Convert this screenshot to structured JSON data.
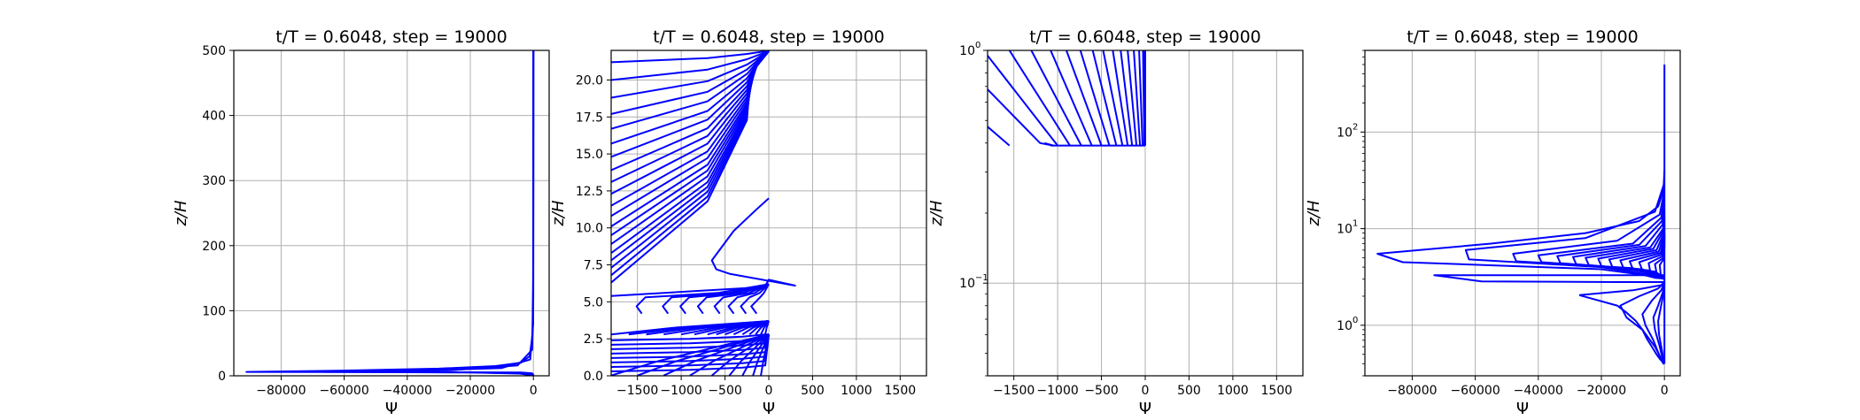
{
  "chart_data": [
    {
      "type": "line",
      "title": "t/T = 0.6048, step = 19000",
      "xlabel": "Ψ",
      "ylabel": "z/H",
      "xlim": [
        -95000,
        5000
      ],
      "ylim": [
        0,
        500
      ],
      "yscale": "linear",
      "grid": true,
      "color": "#0000ff",
      "xticks": [
        -80000,
        -60000,
        -40000,
        -20000,
        0
      ],
      "xtick_labels": [
        "−80000",
        "−60000",
        "−40000",
        "−20000",
        "0"
      ],
      "yticks": [
        0,
        100,
        200,
        300,
        400,
        500
      ],
      "ytick_labels": [
        "0",
        "100",
        "200",
        "300",
        "400",
        "500"
      ],
      "series": [
        {
          "x": [
            0,
            -20,
            -90,
            -300,
            -1200,
            -4000,
            -12000,
            -30000,
            -60000,
            -91000,
            -30000,
            -4000,
            -500,
            -50,
            0
          ],
          "y": [
            500,
            300,
            150,
            60,
            30,
            20,
            15,
            11,
            8,
            6,
            5.5,
            5,
            4,
            2,
            0.4
          ]
        },
        {
          "x": [
            0,
            -30,
            -400,
            -5000,
            -25000,
            -66000,
            -20000,
            -1000,
            0
          ],
          "y": [
            500,
            120,
            40,
            16,
            9,
            6,
            5,
            3,
            0.4
          ]
        },
        {
          "x": [
            0,
            -50,
            -1000,
            -10000,
            -40000,
            -5000,
            0
          ],
          "y": [
            500,
            80,
            25,
            12,
            7,
            4,
            0.4
          ]
        }
      ]
    },
    {
      "type": "line",
      "title": "t/T = 0.6048, step = 19000",
      "xlabel": "Ψ",
      "ylabel": "z/H",
      "xlim": [
        -1800,
        1800
      ],
      "ylim": [
        0,
        22
      ],
      "yscale": "linear",
      "grid": true,
      "color": "#0000ff",
      "xticks": [
        -1500,
        -1000,
        -500,
        0,
        500,
        1000,
        1500
      ],
      "xtick_labels": [
        "−1500",
        "−1000",
        "−500",
        "0",
        "500",
        "1000",
        "1500"
      ],
      "yticks": [
        0,
        2.5,
        5,
        7.5,
        10,
        12.5,
        15,
        17.5,
        20
      ],
      "ytick_labels": [
        "0.0",
        "2.5",
        "5.0",
        "7.5",
        "10.0",
        "12.5",
        "15.0",
        "17.5",
        "20.0"
      ],
      "upper_family": {
        "z0_values": [
          21.2,
          20.0,
          18.8,
          17.7,
          16.7,
          15.7,
          14.8,
          13.9,
          13.1,
          12.3,
          11.5,
          10.8,
          10.1,
          9.5,
          8.9,
          8.3,
          7.8,
          7.3,
          6.8,
          6.3
        ],
        "x_left": -1800,
        "z_surface": 22
      },
      "lower_family": {
        "z_values": [
          0.3,
          0.6,
          0.9,
          1.2,
          1.5,
          1.8,
          2.1,
          2.4
        ],
        "x_left": -1800,
        "z_top": 2.8
      },
      "dense_band": {
        "x_values": [
          -1800,
          -1600,
          -1400,
          -1200,
          -1000,
          -850,
          -700,
          -600,
          -500,
          -400,
          -300,
          -220,
          -150,
          -90,
          -40
        ],
        "z_range": [
          2.8,
          3.7
        ]
      },
      "bottom_ticks": {
        "x_values": [
          -1800,
          -1500,
          -1200,
          -900,
          -650,
          -450,
          -300,
          -180,
          -90
        ]
      },
      "spike": {
        "x": [
          -1800,
          -50,
          0,
          300,
          -450,
          -600,
          -650,
          -550,
          -400,
          -150,
          0
        ],
        "y": [
          5.4,
          6.0,
          6.5,
          6.1,
          6.9,
          7.2,
          7.8,
          8.6,
          9.8,
          11.2,
          12
        ]
      },
      "wiggle_family": {
        "x_values": [
          -1450,
          -1150,
          -950,
          -750,
          -560,
          -400,
          -260,
          -140
        ],
        "z_range": [
          4.2,
          5.3
        ]
      }
    },
    {
      "type": "line",
      "title": "t/T = 0.6048, step = 19000",
      "xlabel": "Ψ",
      "ylabel": "z/H",
      "xlim": [
        -1800,
        1800
      ],
      "ylim": [
        0.04,
        1
      ],
      "yscale": "log",
      "grid": true,
      "color": "#0000ff",
      "xticks": [
        -1500,
        -1000,
        -500,
        0,
        500,
        1000,
        1500
      ],
      "xtick_labels": [
        "−1500",
        "−1000",
        "−500",
        "0",
        "500",
        "1000",
        "1500"
      ],
      "ytick_labels": [
        "10",
        "−1",
        "10",
        "0"
      ],
      "yticks": [
        0.1,
        1
      ],
      "series": [
        {
          "x": [
            -1800,
            -1550
          ],
          "y": [
            0.47,
            0.39
          ]
        },
        {
          "x": [
            -1800,
            -1200,
            -1050,
            -1150
          ],
          "y": [
            0.68,
            0.4,
            0.39,
            0.4
          ]
        },
        {
          "x": [
            -1800,
            -1000
          ],
          "y": [
            0.95,
            0.39
          ]
        },
        {
          "x": [
            -1550,
            -860
          ],
          "y": [
            1,
            0.39
          ]
        },
        {
          "x": [
            -1300,
            -730
          ],
          "y": [
            1,
            0.39
          ]
        },
        {
          "x": [
            -1080,
            -610
          ],
          "y": [
            1,
            0.39
          ]
        },
        {
          "x": [
            -900,
            -500
          ],
          "y": [
            1,
            0.39
          ]
        },
        {
          "x": [
            -740,
            -410
          ],
          "y": [
            1,
            0.39
          ]
        },
        {
          "x": [
            -600,
            -330
          ],
          "y": [
            1,
            0.39
          ]
        },
        {
          "x": [
            -480,
            -260
          ],
          "y": [
            1,
            0.39
          ]
        },
        {
          "x": [
            -370,
            -200
          ],
          "y": [
            1,
            0.39
          ]
        },
        {
          "x": [
            -280,
            -150
          ],
          "y": [
            1,
            0.39
          ]
        },
        {
          "x": [
            -200,
            -100
          ],
          "y": [
            1,
            0.39
          ]
        },
        {
          "x": [
            -130,
            -60
          ],
          "y": [
            1,
            0.39
          ]
        },
        {
          "x": [
            -70,
            -30
          ],
          "y": [
            1,
            0.39
          ]
        },
        {
          "x": [
            -25,
            -10
          ],
          "y": [
            1,
            0.39
          ]
        },
        {
          "x": [
            0,
            0
          ],
          "y": [
            1,
            0.39
          ]
        },
        {
          "x": [
            -10,
            0
          ],
          "y": [
            1,
            0.39
          ]
        }
      ],
      "bottom_line": {
        "x": [
          -1080,
          0
        ],
        "y": [
          0.39,
          0.39
        ]
      }
    },
    {
      "type": "line",
      "title": "t/T = 0.6048, step = 19000",
      "xlabel": "Ψ",
      "ylabel": "z/H",
      "xlim": [
        -95000,
        5000
      ],
      "ylim": [
        0.3,
        700
      ],
      "yscale": "log",
      "grid": true,
      "color": "#0000ff",
      "xticks": [
        -80000,
        -60000,
        -40000,
        -20000,
        0
      ],
      "xtick_labels": [
        "−80000",
        "−60000",
        "−40000",
        "−20000",
        "0"
      ],
      "ytick_labels": [
        "10",
        "0",
        "10",
        "1",
        "10",
        "2"
      ],
      "yticks": [
        1,
        10,
        100
      ],
      "series": [
        {
          "x": [
            0,
            0
          ],
          "y": [
            500,
            0.4
          ]
        },
        {
          "x": [
            0,
            -300,
            -2000,
            -8000,
            -25000,
            -55000,
            -91000,
            -83000,
            -20000,
            -3000,
            0
          ],
          "y": [
            40,
            25,
            17,
            12,
            9,
            7,
            5.5,
            4.5,
            3.8,
            3.2,
            3
          ]
        },
        {
          "x": [
            0,
            -3000,
            -25000,
            -63000,
            -62000,
            -20000,
            -1000,
            0
          ],
          "y": [
            30,
            15,
            8,
            6,
            4.8,
            4,
            3.2,
            3
          ]
        },
        {
          "x": [
            0,
            -1500,
            -15000,
            -48000,
            -47000,
            -10000,
            -500,
            0
          ],
          "y": [
            25,
            14,
            7.5,
            5.5,
            4.6,
            3.9,
            3.1,
            3
          ]
        },
        {
          "x": [
            0,
            -1000,
            -10000,
            -40000,
            -39000,
            -7000,
            -400,
            0
          ],
          "y": [
            22,
            13,
            7,
            5.3,
            4.5,
            3.8,
            3.1,
            3
          ]
        },
        {
          "x": [
            0,
            -800,
            -8000,
            -34000,
            -33000,
            -5000,
            -300,
            0
          ],
          "y": [
            20,
            12,
            6.8,
            5.2,
            4.4,
            3.7,
            3.1,
            3
          ]
        },
        {
          "x": [
            0,
            -600,
            -6000,
            -29000,
            -28000,
            -4000,
            -200,
            0
          ],
          "y": [
            18,
            11,
            6.6,
            5.1,
            4.3,
            3.6,
            3.1,
            3
          ]
        },
        {
          "x": [
            0,
            -400,
            -4500,
            -25000,
            -24000,
            -3000,
            -150,
            0
          ],
          "y": [
            16,
            10,
            6.4,
            5.0,
            4.2,
            3.6,
            3.1,
            3
          ]
        },
        {
          "x": [
            0,
            -300,
            -3500,
            -21000,
            -20000,
            -2500,
            -100,
            0
          ],
          "y": [
            15,
            9.5,
            6.2,
            4.9,
            4.1,
            3.5,
            3.1,
            3
          ]
        },
        {
          "x": [
            0,
            -200,
            -2500,
            -17500,
            -16500,
            -2000,
            0
          ],
          "y": [
            14,
            9,
            6.0,
            4.8,
            4.0,
            3.4,
            3
          ]
        },
        {
          "x": [
            0,
            -150,
            -1800,
            -14000,
            -13000,
            -1500,
            0
          ],
          "y": [
            13,
            8.5,
            5.8,
            4.7,
            3.9,
            3.3,
            3
          ]
        },
        {
          "x": [
            0,
            -100,
            -1200,
            -11000,
            -10000,
            -1000,
            0
          ],
          "y": [
            12,
            8,
            5.6,
            4.6,
            3.8,
            3.3,
            3
          ]
        },
        {
          "x": [
            0,
            -80,
            -800,
            -8000,
            -7000,
            -600,
            0
          ],
          "y": [
            11,
            7.5,
            5.4,
            4.5,
            3.7,
            3.2,
            3
          ]
        },
        {
          "x": [
            0,
            -50,
            -500,
            -5000,
            -4500,
            -300,
            0
          ],
          "y": [
            10,
            7,
            5.2,
            4.4,
            3.6,
            3.2,
            3
          ]
        },
        {
          "x": [
            0,
            -30,
            -300,
            -3000,
            -2500,
            -150,
            0
          ],
          "y": [
            9,
            6.5,
            5.0,
            4.3,
            3.5,
            3.1,
            3
          ]
        },
        {
          "x": [
            0,
            -20,
            -150,
            -1500,
            -1200,
            -80,
            0
          ],
          "y": [
            8.5,
            6.3,
            4.9,
            4.2,
            3.4,
            3.1,
            3
          ]
        },
        {
          "x": [
            -15000,
            -3000,
            0
          ],
          "y": [
            3.9,
            3.1,
            3.05
          ]
        },
        {
          "x": [
            0,
            -73000,
            -58000,
            -15000,
            -1000,
            0
          ],
          "y": [
            3.3,
            3.3,
            2.85,
            2.8,
            2.8,
            2.8
          ]
        },
        {
          "x": [
            0,
            -1000,
            -10000,
            -27000
          ],
          "y": [
            2.8,
            2.6,
            2.3,
            2.05
          ]
        },
        {
          "x": [
            -27000,
            -15000,
            -12000,
            -9000,
            -7000,
            -5500,
            -4000,
            -2500,
            -1500,
            -700,
            -300,
            0
          ],
          "y": [
            2.05,
            1.6,
            1.35,
            1.1,
            0.9,
            0.72,
            0.6,
            0.5,
            0.45,
            0.42,
            0.4,
            0.4
          ]
        },
        {
          "x": [
            0,
            -2000,
            -8000,
            -14000,
            -12000,
            -7000,
            -3000,
            -1000,
            0
          ],
          "y": [
            2.8,
            2.4,
            2.0,
            1.6,
            1.2,
            0.9,
            0.6,
            0.45,
            0.4
          ]
        },
        {
          "x": [
            0,
            -1000,
            -4000,
            -7000,
            -6000,
            -3500,
            -1200,
            0
          ],
          "y": [
            2.8,
            2.3,
            1.8,
            1.3,
            1.0,
            0.7,
            0.45,
            0.4
          ]
        },
        {
          "x": [
            0,
            -500,
            -2000,
            -3500,
            -3000,
            -1500,
            -400,
            0
          ],
          "y": [
            2.8,
            2.2,
            1.6,
            1.2,
            0.9,
            0.6,
            0.42,
            0.4
          ]
        },
        {
          "x": [
            0,
            -300,
            -1200,
            -2000,
            -1700,
            -800,
            -200,
            0
          ],
          "y": [
            2.8,
            2.1,
            1.5,
            1.1,
            0.8,
            0.55,
            0.41,
            0.4
          ]
        }
      ]
    }
  ]
}
